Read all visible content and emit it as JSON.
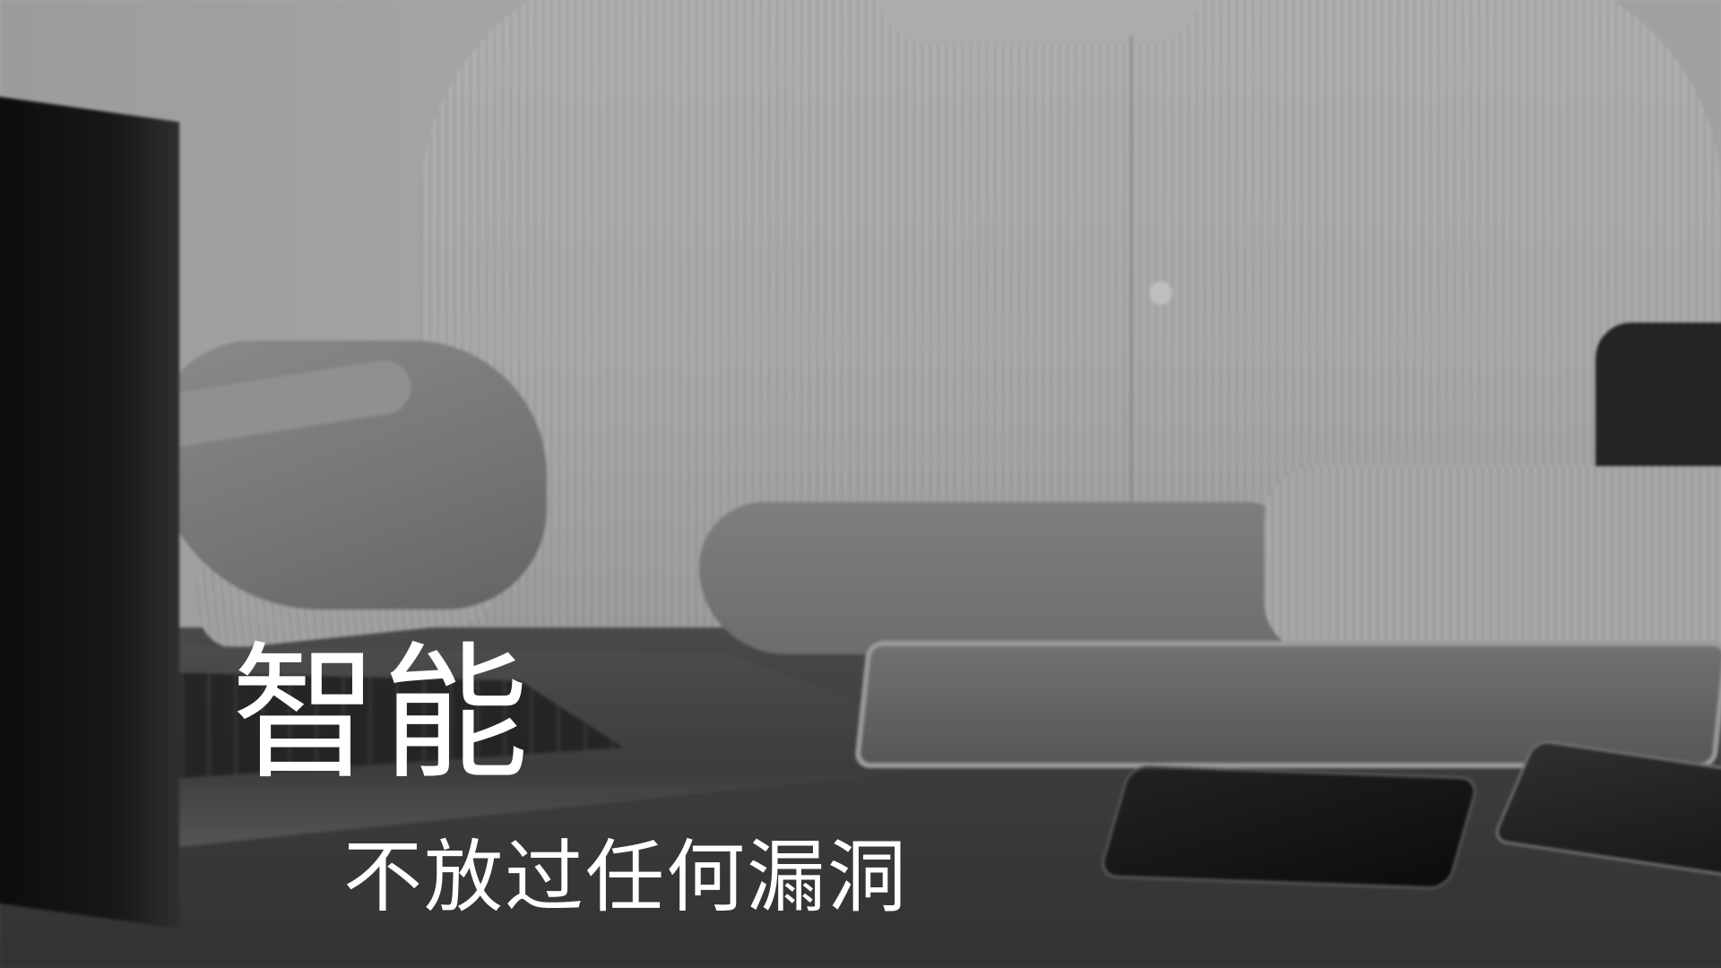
{
  "slide": {
    "title": "智能",
    "subtitle": "不放过任何漏洞"
  },
  "colors": {
    "text": "#ffffff",
    "photo_tone": "grayscale"
  }
}
